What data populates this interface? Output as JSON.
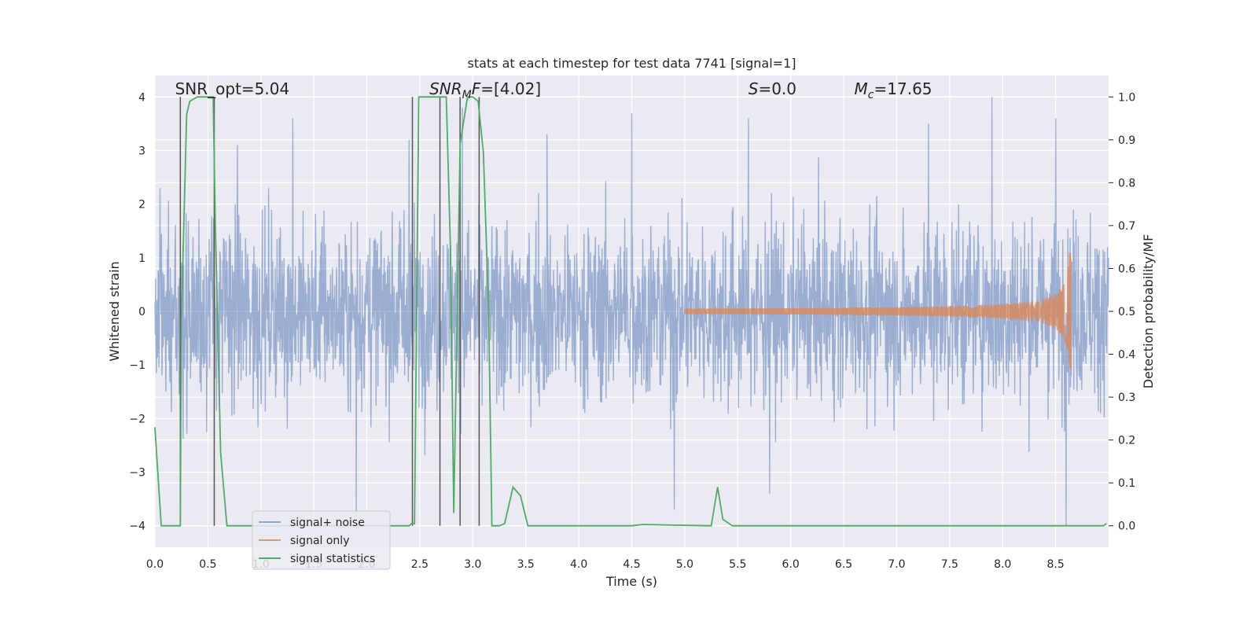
{
  "chart_data": {
    "type": "line",
    "title": "stats at each timestep for test data 7741 [signal=1]",
    "xlabel": "Time (s)",
    "ylabel": "Whitened strain",
    "ylabel_right": "Detection probability/MF",
    "xlim": [
      0.0,
      9.0
    ],
    "ylim": [
      -4.4,
      4.4
    ],
    "ylim_right": [
      -0.05,
      1.05
    ],
    "x_ticks": [
      0.0,
      0.5,
      1.0,
      1.5,
      2.0,
      2.5,
      3.0,
      3.5,
      4.0,
      4.5,
      5.0,
      5.5,
      6.0,
      6.5,
      7.0,
      7.5,
      8.0,
      8.5
    ],
    "x_tick_labels": [
      "0.0",
      "0.5",
      "1.0",
      "1.5",
      "2.0",
      "2.5",
      "3.0",
      "3.5",
      "4.0",
      "4.5",
      "5.0",
      "5.5",
      "6.0",
      "6.5",
      "7.0",
      "7.5",
      "8.0",
      "8.5"
    ],
    "y_ticks": [
      -4,
      -3,
      -2,
      -1,
      0,
      1,
      2,
      3,
      4
    ],
    "y_tick_labels": [
      "−4",
      "−3",
      "−2",
      "−1",
      "0",
      "1",
      "2",
      "3",
      "4"
    ],
    "y_ticks_right": [
      0.0,
      0.1,
      0.2,
      0.3,
      0.4,
      0.5,
      0.6,
      0.7,
      0.8,
      0.9,
      1.0
    ],
    "y_tick_labels_right": [
      "0.0",
      "0.1",
      "0.2",
      "0.3",
      "0.4",
      "0.5",
      "0.6",
      "0.7",
      "0.8",
      "0.9",
      "1.0"
    ],
    "grid": true,
    "annotations": [
      {
        "x": 0.19,
        "y": 4.05,
        "text": "SNR_opt=5.04",
        "italic": false
      },
      {
        "x": 2.59,
        "y": 4.05,
        "text": "SNR_MF=[4.02]",
        "italic": true,
        "kind": "snrmf"
      },
      {
        "x": 5.6,
        "y": 4.05,
        "text": "S=0.0",
        "italic": true,
        "kind": "s"
      },
      {
        "x": 6.6,
        "y": 4.05,
        "text": "M_c=17.65",
        "italic": true,
        "kind": "mc"
      }
    ],
    "series": [
      {
        "name": "signal+ noise",
        "color": "#4c72b0",
        "alpha": 0.5,
        "kind": "noise",
        "envelope_std": 0.95,
        "peaks": [
          [
            0.05,
            2.3
          ],
          [
            0.78,
            3.1
          ],
          [
            1.3,
            3.6
          ],
          [
            2.4,
            3.2
          ],
          [
            2.9,
            3.8
          ],
          [
            3.7,
            3.3
          ],
          [
            4.5,
            3.7
          ],
          [
            5.6,
            3.6
          ],
          [
            7.3,
            3.5
          ],
          [
            7.9,
            4.0
          ],
          [
            8.5,
            3.6
          ],
          [
            1.9,
            -3.8
          ],
          [
            4.9,
            -3.7
          ],
          [
            5.8,
            -3.4
          ],
          [
            8.6,
            -4.0
          ]
        ]
      },
      {
        "name": "signal only",
        "color": "#dd8452",
        "kind": "chirp",
        "t_start": 5.0,
        "t_merge": 8.65,
        "peak_amp": 1.1
      },
      {
        "name": "signal statistics",
        "color": "#55a868",
        "axis": "right",
        "x": [
          0.0,
          0.06,
          0.24,
          0.25,
          0.3,
          0.33,
          0.4,
          0.55,
          0.57,
          0.62,
          0.68,
          2.4,
          2.42,
          2.45,
          2.49,
          2.55,
          2.75,
          2.79,
          2.82,
          2.88,
          2.95,
          3.0,
          3.05,
          3.1,
          3.15,
          3.18,
          3.25,
          3.3,
          3.38,
          3.45,
          3.52,
          4.5,
          4.6,
          5.25,
          5.31,
          5.36,
          5.45,
          8.95,
          8.98
        ],
        "y": [
          0.23,
          0.0,
          0.0,
          0.48,
          0.96,
          0.99,
          1.0,
          1.0,
          0.71,
          0.17,
          0.0,
          0.0,
          0.005,
          0.005,
          1.0,
          1.0,
          1.0,
          0.64,
          0.03,
          0.89,
          1.0,
          1.0,
          0.99,
          0.87,
          0.5,
          0.0,
          0.0,
          0.005,
          0.09,
          0.07,
          0.0,
          0.0,
          0.003,
          0.0,
          0.09,
          0.015,
          0.0,
          0.0,
          0.005
        ]
      }
    ],
    "vlines": [
      0.24,
      0.56,
      2.43,
      2.69,
      2.88,
      3.06
    ],
    "vline_color": "#555555",
    "legend": {
      "position": "lower-left",
      "entries": [
        "signal+ noise",
        "signal only",
        "signal statistics"
      ]
    }
  }
}
